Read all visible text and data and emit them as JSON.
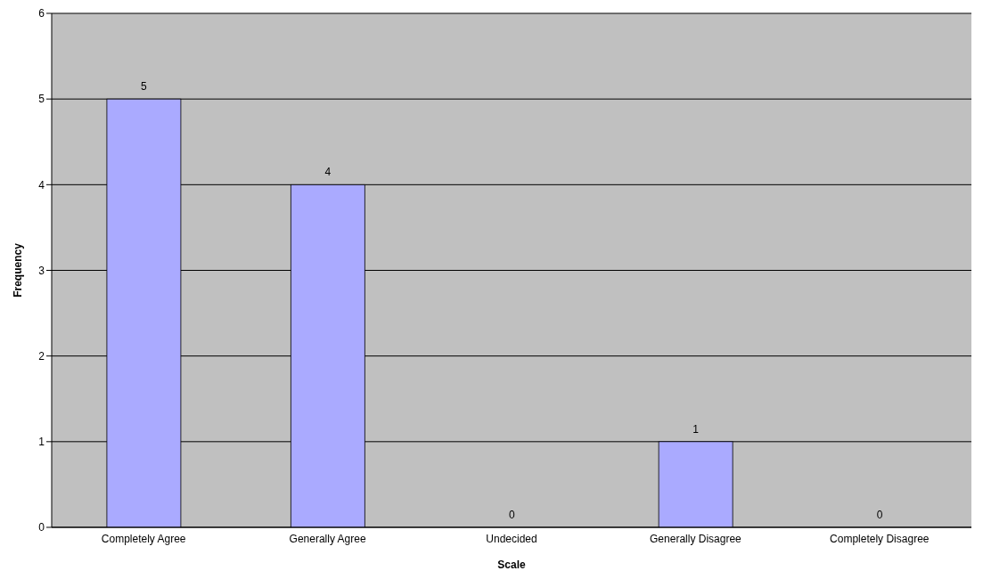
{
  "chart_data": {
    "type": "bar",
    "xlabel": "Scale",
    "ylabel": "Frequency",
    "categories": [
      "Completely Agree",
      "Generally Agree",
      "Undecided",
      "Generally Disagree",
      "Completely Disagree"
    ],
    "values": [
      5,
      4,
      0,
      1,
      0
    ],
    "color": "#aaaaff",
    "ylim": [
      0,
      6
    ],
    "yticks": [
      0,
      1,
      2,
      3,
      4,
      5,
      6
    ],
    "grid": "y",
    "data_labels": true
  }
}
